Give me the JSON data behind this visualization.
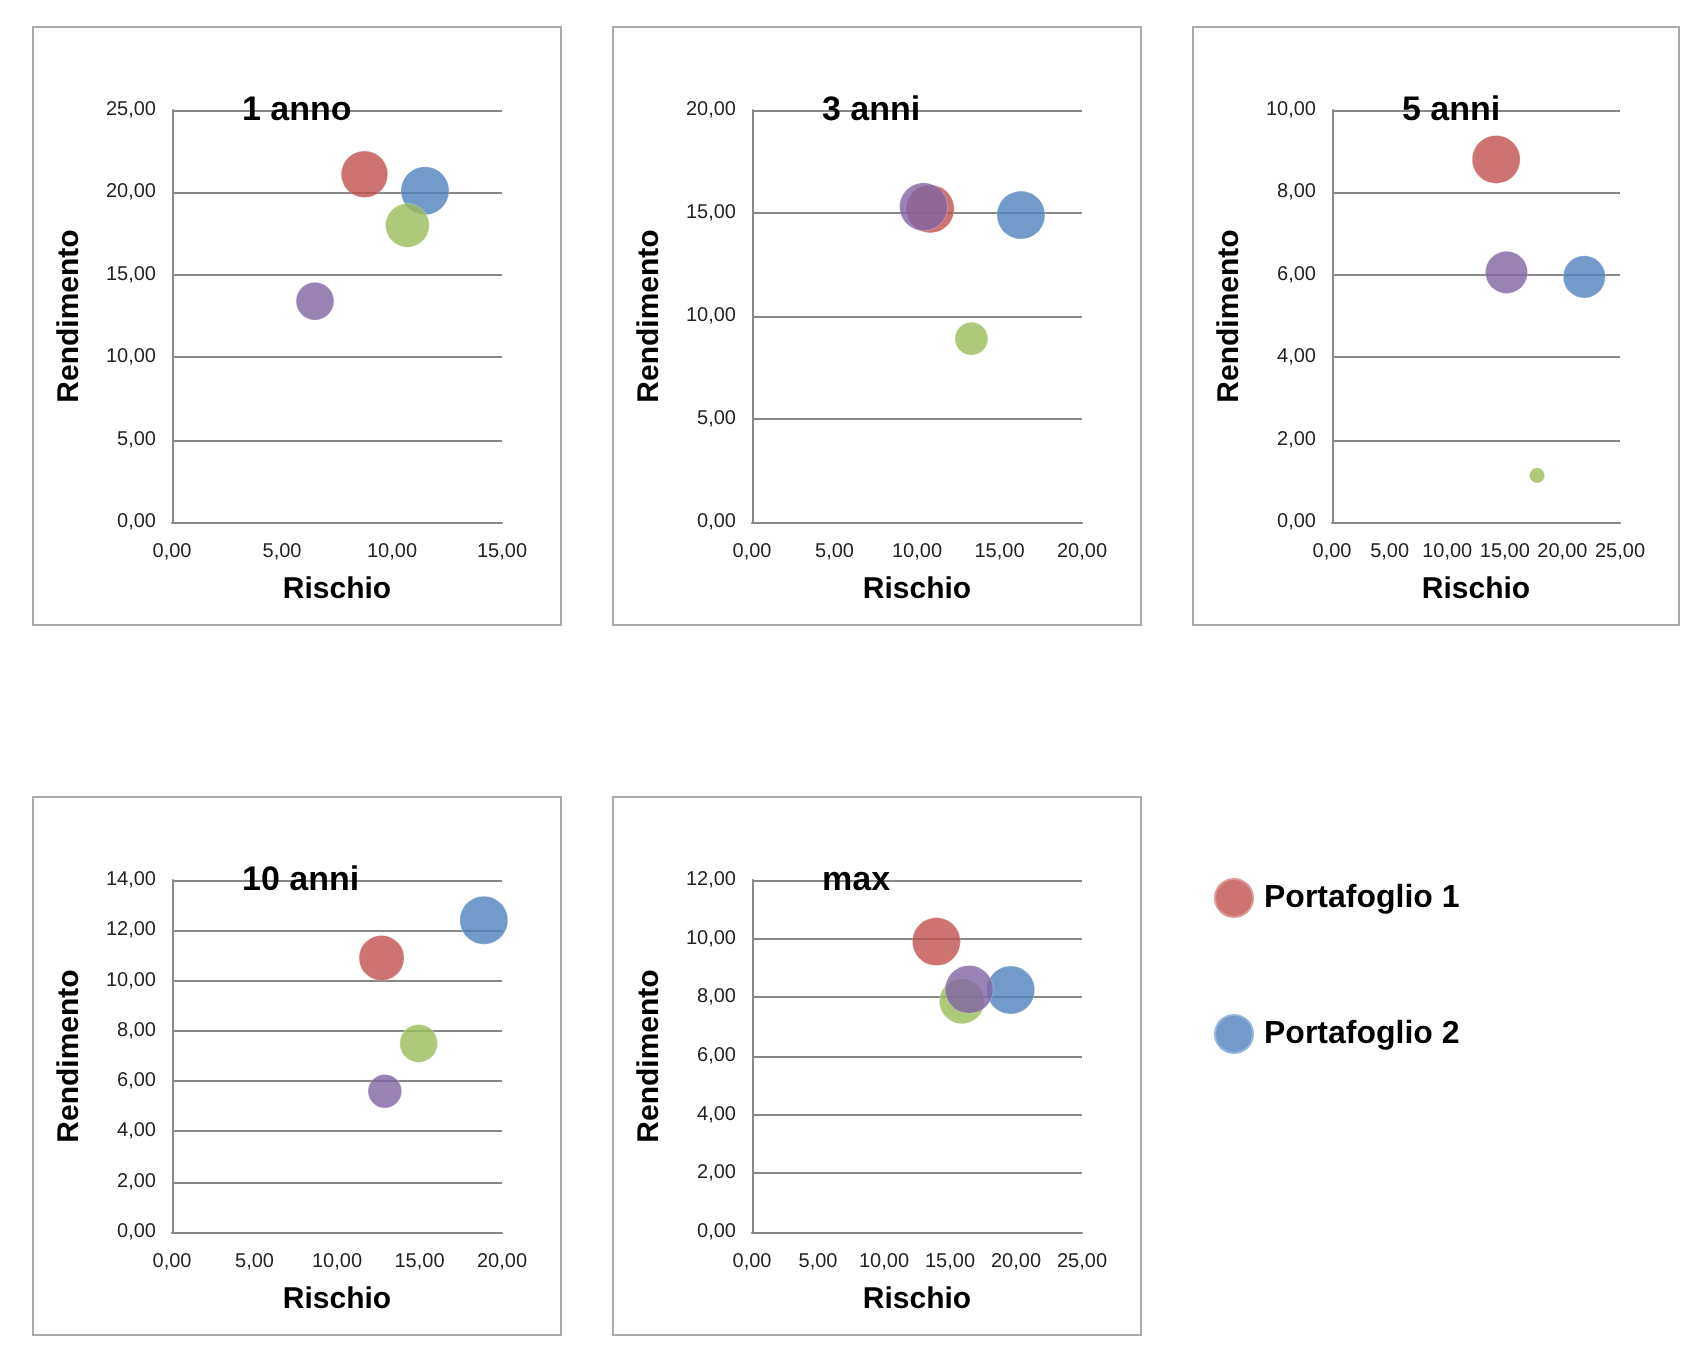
{
  "chart_data": [
    {
      "type": "bubble",
      "title": "1 anno",
      "xlabel": "Rischio",
      "ylabel": "Rendimento",
      "xlim": [
        0,
        15
      ],
      "xticks": [
        {
          "value": 0,
          "label": "0,00"
        },
        {
          "value": 5,
          "label": "5,00"
        },
        {
          "value": 10,
          "label": "10,00"
        },
        {
          "value": 15,
          "label": "15,00"
        }
      ],
      "ylim": [
        0,
        25
      ],
      "yticks": [
        {
          "value": 0,
          "label": "0,00"
        },
        {
          "value": 5,
          "label": "5,00"
        },
        {
          "value": 10,
          "label": "10,00"
        },
        {
          "value": 15,
          "label": "15,00"
        },
        {
          "value": 20,
          "label": "20,00"
        },
        {
          "value": 25,
          "label": "25,00"
        }
      ],
      "grid": "y",
      "legend": false,
      "series": [
        {
          "color": "#c0504d",
          "x": [
            8.75
          ],
          "values": [
            21.1
          ],
          "sizes": [
            0.94
          ]
        },
        {
          "color": "#4f81bd",
          "x": [
            11.5
          ],
          "values": [
            20.1
          ],
          "sizes": [
            1
          ]
        },
        {
          "color": "#9bbb59",
          "x": [
            10.7
          ],
          "values": [
            18.0
          ],
          "sizes": [
            0.83
          ]
        },
        {
          "color": "#8064a2",
          "x": [
            6.5
          ],
          "values": [
            13.4
          ],
          "sizes": [
            0.62
          ]
        }
      ]
    },
    {
      "type": "bubble",
      "title": "3 anni",
      "xlabel": "Rischio",
      "ylabel": "Rendimento",
      "xlim": [
        0,
        20
      ],
      "xticks": [
        {
          "value": 0,
          "label": "0,00"
        },
        {
          "value": 5,
          "label": "5,00"
        },
        {
          "value": 10,
          "label": "10,00"
        },
        {
          "value": 15,
          "label": "15,00"
        },
        {
          "value": 20,
          "label": "20,00"
        }
      ],
      "ylim": [
        0,
        20
      ],
      "yticks": [
        {
          "value": 0,
          "label": "0,00"
        },
        {
          "value": 5,
          "label": "5,00"
        },
        {
          "value": 10,
          "label": "10,00"
        },
        {
          "value": 15,
          "label": "15,00"
        },
        {
          "value": 20,
          "label": "20,00"
        }
      ],
      "grid": "y",
      "legend": false,
      "series": [
        {
          "color": "#c0504d",
          "x": [
            10.8
          ],
          "values": [
            15.2
          ],
          "sizes": [
            1
          ]
        },
        {
          "color": "#4f81bd",
          "x": [
            16.3
          ],
          "values": [
            14.9
          ],
          "sizes": [
            1
          ]
        },
        {
          "color": "#9bbb59",
          "x": [
            13.3
          ],
          "values": [
            8.9
          ],
          "sizes": [
            0.47
          ]
        },
        {
          "color": "#8064a2",
          "x": [
            10.4
          ],
          "values": [
            15.3
          ],
          "sizes": [
            1
          ]
        }
      ]
    },
    {
      "type": "bubble",
      "title": "5 anni",
      "xlabel": "Rischio",
      "ylabel": "Rendimento",
      "xlim": [
        0,
        25
      ],
      "xticks": [
        {
          "value": 0,
          "label": "0,00"
        },
        {
          "value": 5,
          "label": "5,00"
        },
        {
          "value": 10,
          "label": "10,00"
        },
        {
          "value": 15,
          "label": "15,00"
        },
        {
          "value": 20,
          "label": "20,00"
        },
        {
          "value": 25,
          "label": "25,00"
        }
      ],
      "ylim": [
        0,
        10
      ],
      "yticks": [
        {
          "value": 0,
          "label": "0,00"
        },
        {
          "value": 2,
          "label": "2,00"
        },
        {
          "value": 4,
          "label": "4,00"
        },
        {
          "value": 6,
          "label": "6,00"
        },
        {
          "value": 8,
          "label": "8,00"
        },
        {
          "value": 10,
          "label": "10,00"
        }
      ],
      "grid": "y",
      "legend": false,
      "series": [
        {
          "color": "#c0504d",
          "x": [
            14.25
          ],
          "values": [
            8.8
          ],
          "sizes": [
            1
          ]
        },
        {
          "color": "#4f81bd",
          "x": [
            21.9
          ],
          "values": [
            5.95
          ],
          "sizes": [
            0.77
          ]
        },
        {
          "color": "#9bbb59",
          "x": [
            17.8
          ],
          "values": [
            1.13
          ],
          "sizes": [
            0.1
          ]
        },
        {
          "color": "#8064a2",
          "x": [
            15.15
          ],
          "values": [
            6.06
          ],
          "sizes": [
            0.77
          ]
        }
      ]
    },
    {
      "type": "bubble",
      "title": "10 anni",
      "xlabel": "Rischio",
      "ylabel": "Rendimento",
      "xlim": [
        0,
        20
      ],
      "xticks": [
        {
          "value": 0,
          "label": "0,00"
        },
        {
          "value": 5,
          "label": "5,00"
        },
        {
          "value": 10,
          "label": "10,00"
        },
        {
          "value": 15,
          "label": "15,00"
        },
        {
          "value": 20,
          "label": "20,00"
        }
      ],
      "ylim": [
        0,
        14
      ],
      "yticks": [
        {
          "value": 0,
          "label": "0,00"
        },
        {
          "value": 2,
          "label": "2,00"
        },
        {
          "value": 4,
          "label": "4,00"
        },
        {
          "value": 6,
          "label": "6,00"
        },
        {
          "value": 8,
          "label": "8,00"
        },
        {
          "value": 10,
          "label": "10,00"
        },
        {
          "value": 12,
          "label": "12,00"
        },
        {
          "value": 14,
          "label": "14,00"
        }
      ],
      "grid": "y",
      "legend": false,
      "series": [
        {
          "color": "#c0504d",
          "x": [
            12.7
          ],
          "values": [
            10.9
          ],
          "sizes": [
            0.88
          ]
        },
        {
          "color": "#4f81bd",
          "x": [
            18.9
          ],
          "values": [
            12.4
          ],
          "sizes": [
            1
          ]
        },
        {
          "color": "#9bbb59",
          "x": [
            14.95
          ],
          "values": [
            7.5
          ],
          "sizes": [
            0.62
          ]
        },
        {
          "color": "#8064a2",
          "x": [
            12.9
          ],
          "values": [
            5.6
          ],
          "sizes": [
            0.49
          ]
        }
      ]
    },
    {
      "type": "bubble",
      "title": "max",
      "xlabel": "Rischio",
      "ylabel": "Rendimento",
      "xlim": [
        0,
        25
      ],
      "xticks": [
        {
          "value": 0,
          "label": "0,00"
        },
        {
          "value": 5,
          "label": "5,00"
        },
        {
          "value": 10,
          "label": "10,00"
        },
        {
          "value": 15,
          "label": "15,00"
        },
        {
          "value": 20,
          "label": "20,00"
        },
        {
          "value": 25,
          "label": "25,00"
        }
      ],
      "ylim": [
        0,
        12
      ],
      "yticks": [
        {
          "value": 0,
          "label": "0,00"
        },
        {
          "value": 2,
          "label": "2,00"
        },
        {
          "value": 4,
          "label": "4,00"
        },
        {
          "value": 6,
          "label": "6,00"
        },
        {
          "value": 8,
          "label": "8,00"
        },
        {
          "value": 10,
          "label": "10,00"
        },
        {
          "value": 12,
          "label": "12,00"
        }
      ],
      "grid": "y",
      "legend": "right",
      "series": [
        {
          "name": "Portafoglio 1",
          "color": "#c0504d",
          "x": [
            13.97
          ],
          "values": [
            9.9
          ],
          "sizes": [
            1
          ]
        },
        {
          "name": "Portafoglio 2",
          "color": "#4f81bd",
          "x": [
            19.6
          ],
          "values": [
            8.25
          ],
          "sizes": [
            1
          ]
        },
        {
          "color": "#9bbb59",
          "x": [
            15.9
          ],
          "values": [
            7.87
          ],
          "sizes": [
            0.88
          ]
        },
        {
          "color": "#8064a2",
          "x": [
            16.45
          ],
          "values": [
            8.27
          ],
          "sizes": [
            1
          ]
        }
      ]
    }
  ]
}
